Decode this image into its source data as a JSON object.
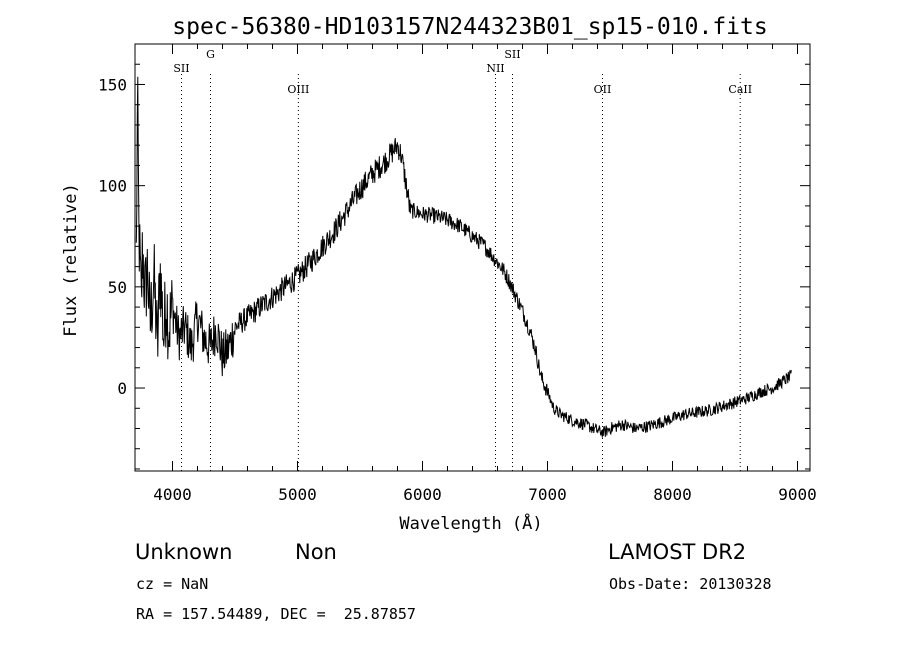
{
  "chart_data": {
    "type": "line",
    "title": "spec-56380-HD103157N244323B01_sp15-010.fits",
    "xlabel": "Wavelength (Å)",
    "ylabel": "Flux (relative)",
    "xlim": [
      3700,
      9100
    ],
    "ylim": [
      -41,
      170
    ],
    "xticks": [
      4000,
      5000,
      6000,
      7000,
      8000,
      9000
    ],
    "yticks": [
      0,
      50,
      100,
      150
    ],
    "grid": false,
    "series": [
      {
        "color": "#000000",
        "x": [
          3710,
          3720,
          3730,
          3740,
          3750,
          3760,
          3780,
          3800,
          3820,
          3850,
          3880,
          3900,
          3930,
          3950,
          3970,
          4000,
          4050,
          4100,
          4150,
          4200,
          4250,
          4300,
          4350,
          4400,
          4450,
          4500,
          4600,
          4700,
          4800,
          4900,
          5000,
          5100,
          5200,
          5300,
          5400,
          5500,
          5600,
          5700,
          5750,
          5800,
          5830,
          5870,
          5900,
          6000,
          6100,
          6200,
          6300,
          6400,
          6500,
          6600,
          6650,
          6700,
          6750,
          6800,
          6850,
          6900,
          6950,
          7000,
          7050,
          7100,
          7200,
          7300,
          7400,
          7450,
          7500,
          7600,
          7700,
          7800,
          7900,
          8000,
          8100,
          8200,
          8300,
          8400,
          8500,
          8600,
          8700,
          8800,
          8850,
          8900,
          8950
        ],
        "y": [
          65,
          145,
          80,
          60,
          40,
          70,
          45,
          60,
          30,
          55,
          20,
          60,
          25,
          45,
          30,
          40,
          25,
          30,
          20,
          35,
          25,
          20,
          30,
          15,
          20,
          30,
          35,
          40,
          45,
          50,
          55,
          62,
          70,
          78,
          88,
          98,
          106,
          112,
          116,
          120,
          115,
          100,
          88,
          86,
          85,
          83,
          80,
          75,
          70,
          62,
          58,
          52,
          45,
          38,
          30,
          20,
          5,
          -2,
          -10,
          -13,
          -16,
          -18,
          -21,
          -22,
          -20,
          -18,
          -20,
          -19,
          -17,
          -15,
          -13,
          -12,
          -11,
          -9,
          -7,
          -5,
          -2,
          0,
          2,
          4,
          6
        ]
      }
    ],
    "line_markers": [
      {
        "label": "SII",
        "x": 4072
      },
      {
        "label": "G",
        "x": 4304
      },
      {
        "label": "OIII",
        "x": 5007
      },
      {
        "label": "NII",
        "x": 6584
      },
      {
        "label": "SII",
        "x": 6720
      },
      {
        "label": "OII",
        "x": 7440
      },
      {
        "label": "CaII",
        "x": 8542
      }
    ]
  },
  "info": {
    "class": "Unknown",
    "subclass": "Non",
    "survey": "LAMOST DR2",
    "cz": "cz = NaN",
    "obs_date": "Obs-Date: 20130328",
    "radec": "RA = 157.54489, DEC =  25.87857"
  }
}
